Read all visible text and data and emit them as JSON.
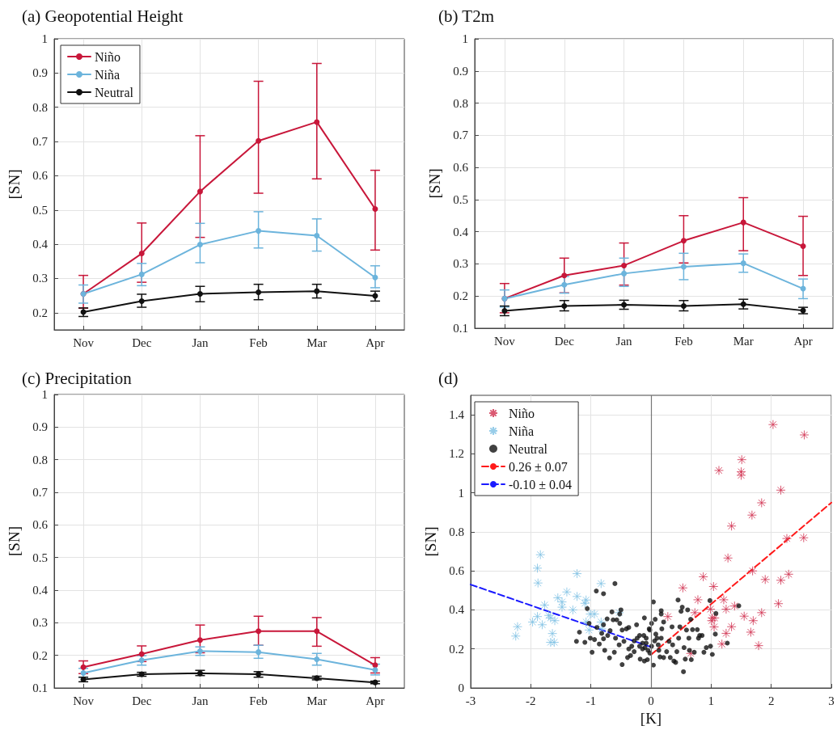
{
  "chart_data": [
    {
      "type": "line",
      "title": "(a) Geopotential Height",
      "ylabel": "[SN]",
      "categories": [
        "Nov",
        "Dec",
        "Jan",
        "Feb",
        "Mar",
        "Apr"
      ],
      "ylim": [
        0.15,
        1
      ],
      "yticks": [
        0.2,
        0.3,
        0.4,
        0.5,
        0.6,
        0.7,
        0.8,
        0.9,
        1
      ],
      "grid": true,
      "legend": "top left",
      "marker": "circle",
      "series": [
        {
          "name": "Niño",
          "color": "#c8173a",
          "values": [
            0.255,
            0.373,
            0.554,
            0.702,
            0.757,
            0.503
          ],
          "errors": [
            [
              0.213,
              0.309
            ],
            [
              0.289,
              0.462
            ],
            [
              0.42,
              0.717
            ],
            [
              0.549,
              0.876
            ],
            [
              0.591,
              0.928
            ],
            [
              0.383,
              0.616
            ]
          ]
        },
        {
          "name": "Niña",
          "color": "#6cb4dc",
          "values": [
            0.255,
            0.312,
            0.399,
            0.439,
            0.425,
            0.303
          ],
          "errors": [
            [
              0.228,
              0.281
            ],
            [
              0.279,
              0.344
            ],
            [
              0.346,
              0.461
            ],
            [
              0.389,
              0.495
            ],
            [
              0.38,
              0.474
            ],
            [
              0.273,
              0.337
            ]
          ]
        },
        {
          "name": "Neutral",
          "color": "#111111",
          "values": [
            0.202,
            0.234,
            0.255,
            0.26,
            0.263,
            0.249
          ],
          "errors": [
            [
              0.189,
              0.214
            ],
            [
              0.216,
              0.254
            ],
            [
              0.232,
              0.277
            ],
            [
              0.238,
              0.283
            ],
            [
              0.243,
              0.283
            ],
            [
              0.234,
              0.263
            ]
          ]
        }
      ]
    },
    {
      "type": "line",
      "title": "(b) T2m",
      "ylabel": "[SN]",
      "categories": [
        "Nov",
        "Dec",
        "Jan",
        "Feb",
        "Mar",
        "Apr"
      ],
      "ylim": [
        0.1,
        1
      ],
      "yticks": [
        0.1,
        0.2,
        0.3,
        0.4,
        0.5,
        0.6,
        0.7,
        0.8,
        0.9,
        1
      ],
      "grid": true,
      "marker": "circle",
      "series": [
        {
          "color": "#c8173a",
          "values": [
            0.192,
            0.264,
            0.295,
            0.372,
            0.429,
            0.355
          ],
          "errors": [
            [
              0.148,
              0.239
            ],
            [
              0.21,
              0.318
            ],
            [
              0.234,
              0.365
            ],
            [
              0.303,
              0.45
            ],
            [
              0.341,
              0.506
            ],
            [
              0.264,
              0.448
            ]
          ]
        },
        {
          "color": "#6cb4dc",
          "values": [
            0.192,
            0.235,
            0.27,
            0.291,
            0.302,
            0.223
          ],
          "errors": [
            [
              0.166,
              0.219
            ],
            [
              0.209,
              0.261
            ],
            [
              0.23,
              0.318
            ],
            [
              0.251,
              0.333
            ],
            [
              0.274,
              0.331
            ],
            [
              0.192,
              0.253
            ]
          ]
        },
        {
          "color": "#111111",
          "values": [
            0.154,
            0.169,
            0.173,
            0.169,
            0.175,
            0.155
          ],
          "errors": [
            [
              0.139,
              0.169
            ],
            [
              0.154,
              0.186
            ],
            [
              0.159,
              0.187
            ],
            [
              0.154,
              0.186
            ],
            [
              0.16,
              0.19
            ],
            [
              0.145,
              0.165
            ]
          ]
        }
      ]
    },
    {
      "type": "line",
      "title": "(c) Precipitation",
      "ylabel": "[SN]",
      "categories": [
        "Nov",
        "Dec",
        "Jan",
        "Feb",
        "Mar",
        "Apr"
      ],
      "ylim": [
        0.1,
        1
      ],
      "yticks": [
        0.1,
        0.2,
        0.3,
        0.4,
        0.5,
        0.6,
        0.7,
        0.8,
        0.9,
        1
      ],
      "grid": true,
      "marker": "circle",
      "series": [
        {
          "color": "#c8173a",
          "values": [
            0.164,
            0.204,
            0.247,
            0.274,
            0.274,
            0.17
          ],
          "errors": [
            [
              0.144,
              0.183
            ],
            [
              0.181,
              0.229
            ],
            [
              0.208,
              0.293
            ],
            [
              0.231,
              0.32
            ],
            [
              0.228,
              0.316
            ],
            [
              0.146,
              0.193
            ]
          ]
        },
        {
          "color": "#6cb4dc",
          "values": [
            0.146,
            0.185,
            0.213,
            0.21,
            0.188,
            0.155
          ],
          "errors": [
            [
              0.133,
              0.16
            ],
            [
              0.17,
              0.199
            ],
            [
              0.2,
              0.226
            ],
            [
              0.191,
              0.231
            ],
            [
              0.17,
              0.206
            ],
            [
              0.14,
              0.173
            ]
          ]
        },
        {
          "color": "#111111",
          "values": [
            0.126,
            0.142,
            0.145,
            0.142,
            0.13,
            0.117
          ],
          "errors": [
            [
              0.119,
              0.133
            ],
            [
              0.136,
              0.148
            ],
            [
              0.138,
              0.154
            ],
            [
              0.133,
              0.15
            ],
            [
              0.125,
              0.136
            ],
            [
              0.113,
              0.121
            ]
          ]
        }
      ]
    },
    {
      "type": "scatter",
      "title": "(d)",
      "xlabel": "[K]",
      "ylabel": "[SN]",
      "xlim": [
        -3,
        3
      ],
      "xticks": [
        -3,
        -2,
        -1,
        0,
        1,
        2,
        3
      ],
      "ylim": [
        0,
        1.5
      ],
      "yticks": [
        0,
        0.2,
        0.4,
        0.6,
        0.8,
        1,
        1.2,
        1.4
      ],
      "grid": true,
      "legend": "top left",
      "ref_lines": [
        {
          "axis": "x",
          "value": 0,
          "color": "#777777"
        }
      ],
      "series": [
        {
          "name": "Niño",
          "color": "#d1304f",
          "marker": "cross",
          "x": [
            1.13,
            1.51,
            1.5,
            1.5,
            2.03,
            2.55,
            2.16,
            1.84,
            1.68,
            1.34,
            2.26,
            2.54,
            1.28,
            1.69,
            1.9,
            2.16,
            2.29,
            0.87,
            0.53,
            1.04,
            0.78,
            1.21,
            0.73,
            0.99,
            1.25,
            1.39,
            1.55,
            1.7,
            1.84,
            1.02,
            1.06,
            1.01,
            1.05,
            1.34,
            1.25,
            1.66,
            2.12,
            1.18,
            1.79,
            0.28,
            0.66
          ],
          "values": [
            1.115,
            1.17,
            1.108,
            1.09,
            1.35,
            1.297,
            1.014,
            0.949,
            0.886,
            0.83,
            0.766,
            0.77,
            0.666,
            0.6,
            0.556,
            0.552,
            0.583,
            0.57,
            0.513,
            0.52,
            0.452,
            0.452,
            0.386,
            0.404,
            0.404,
            0.42,
            0.368,
            0.345,
            0.386,
            0.359,
            0.359,
            0.345,
            0.313,
            0.314,
            0.28,
            0.286,
            0.432,
            0.225,
            0.217,
            0.366,
            0.177
          ]
        },
        {
          "name": "Niña",
          "color": "#7ec0e4",
          "marker": "cross",
          "x": [
            -1.84,
            -1.89,
            -1.88,
            -1.23,
            -0.83,
            -2.22,
            -2.25,
            -1.97,
            -1.89,
            -1.81,
            -1.77,
            -1.7,
            -1.67,
            -1.6,
            -1.64,
            -1.67,
            -1.61,
            -1.55,
            -1.48,
            -1.48,
            -1.4,
            -1.3,
            -1.23,
            -1.08,
            -1.1,
            -1.08,
            -1.03,
            -1.01,
            -0.94,
            -0.83,
            -0.82,
            -0.53
          ],
          "values": [
            0.683,
            0.614,
            0.538,
            0.586,
            0.535,
            0.314,
            0.266,
            0.338,
            0.366,
            0.324,
            0.425,
            0.372,
            0.359,
            0.345,
            0.279,
            0.234,
            0.234,
            0.462,
            0.441,
            0.414,
            0.492,
            0.4,
            0.469,
            0.451,
            0.434,
            0.338,
            0.297,
            0.379,
            0.379,
            0.338,
            0.303,
            0.386
          ]
        },
        {
          "name": "Neutral",
          "color": "#111111",
          "marker": "circle",
          "x": [
            -0.6,
            -0.91,
            -0.79,
            -1.06,
            -0.5,
            -0.52,
            -0.65,
            -0.73,
            -0.63,
            -0.57,
            -1.19,
            -1.03,
            -1.01,
            -1.1,
            -1.24,
            -0.98,
            -0.86,
            -0.79,
            -0.72,
            -0.82,
            -0.68,
            -0.59,
            -0.53,
            -0.41,
            -0.48,
            -0.37,
            -0.45,
            -0.48,
            -0.69,
            -0.77,
            -0.61,
            -0.37,
            -0.28,
            -0.34,
            -0.39,
            -0.24,
            -0.12,
            -0.08,
            -0.18,
            -0.11,
            -0.06,
            -0.14,
            -0.1,
            -0.05,
            -0.02,
            -0.11,
            -0.02,
            -0.08,
            -0.14,
            -0.19,
            0.04,
            0.04,
            0.01,
            0.06,
            0.08,
            0.1,
            0.12,
            0.13,
            0.17,
            0.17,
            0.17,
            0.21,
            0.18,
            0.15,
            0.21,
            0.26,
            0.3,
            0.35,
            0.36,
            0.32,
            0.38,
            0.41,
            0.43,
            0.46,
            0.48,
            0.45,
            0.5,
            0.52,
            0.55,
            0.57,
            0.54,
            0.59,
            0.61,
            0.63,
            0.64,
            0.66,
            0.69,
            0.67,
            0.72,
            0.77,
            0.79,
            0.81,
            0.85,
            0.88,
            0.92,
            0.99,
            1.02,
            1.07,
            1.08,
            0.98,
            1.27,
            1.46,
            -0.03,
            0.01,
            0.07,
            -0.19,
            -0.23,
            -0.32,
            -0.28,
            -0.52,
            -0.79,
            -0.9,
            -0.94
          ],
          "values": [
            0.535,
            0.497,
            0.483,
            0.407,
            0.4,
            0.379,
            0.39,
            0.354,
            0.349,
            0.349,
            0.286,
            0.331,
            0.255,
            0.234,
            0.239,
            0.183,
            0.225,
            0.252,
            0.269,
            0.28,
            0.294,
            0.255,
            0.221,
            0.303,
            0.297,
            0.31,
            0.239,
            0.12,
            0.154,
            0.193,
            0.183,
            0.2,
            0.186,
            0.166,
            0.156,
            0.324,
            0.269,
            0.255,
            0.148,
            0.138,
            0.145,
            0.2,
            0.207,
            0.193,
            0.179,
            0.359,
            0.297,
            0.23,
            0.23,
            0.214,
            0.441,
            0.117,
            0.214,
            0.241,
            0.276,
            0.255,
            0.221,
            0.193,
            0.255,
            0.396,
            0.379,
            0.338,
            0.303,
            0.159,
            0.156,
            0.186,
            0.239,
            0.313,
            0.221,
            0.156,
            0.138,
            0.131,
            0.186,
            0.255,
            0.313,
            0.451,
            0.393,
            0.414,
            0.207,
            0.148,
            0.083,
            0.297,
            0.4,
            0.255,
            0.193,
            0.352,
            0.299,
            0.145,
            0.183,
            0.299,
            0.255,
            0.269,
            0.269,
            0.183,
            0.207,
            0.214,
            0.172,
            0.276,
            0.382,
            0.448,
            0.23,
            0.421,
            0.303,
            0.331,
            0.352,
            0.269,
            0.255,
            0.214,
            0.241,
            0.331,
            0.324,
            0.31,
            0.248
          ]
        },
        {
          "name": "0.26 ± 0.07",
          "type": "line",
          "color": "#ff1a1a",
          "marker": "none",
          "line_style": "dashed",
          "x": [
            0,
            3
          ],
          "values": [
            0.17,
            0.95
          ]
        },
        {
          "name": "-0.10 ± 0.04",
          "type": "line",
          "color": "#1a1aff",
          "marker": "none",
          "line_style": "dashed",
          "x": [
            -3,
            0
          ],
          "values": [
            0.53,
            0.21
          ]
        }
      ]
    }
  ]
}
